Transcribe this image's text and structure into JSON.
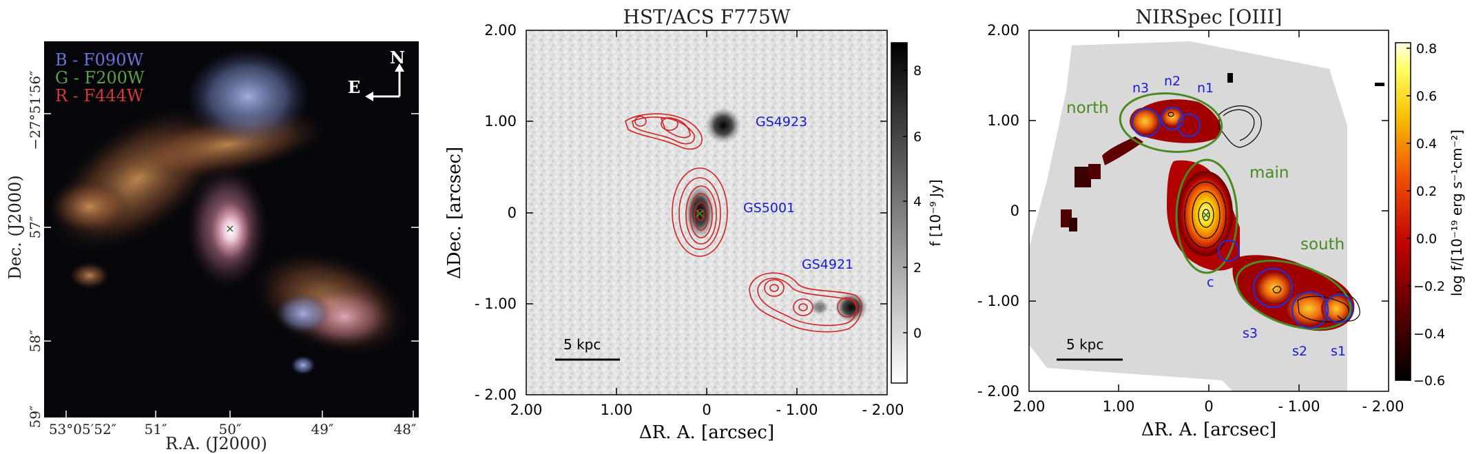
{
  "panel_left": {
    "legend": [
      {
        "text": "B - F090W",
        "color": "#6c74d8"
      },
      {
        "text": "G - F200W",
        "color": "#5ca04a"
      },
      {
        "text": "R - F444W",
        "color": "#d23a3a"
      }
    ],
    "compass": {
      "north": "N",
      "east": "E"
    },
    "y_ticks": [
      "−27°51′56″",
      "57″",
      "58″",
      "59″"
    ],
    "x_ticks": [
      "53°05′52″",
      "51″",
      "50″",
      "49″",
      "48″"
    ],
    "xlabel": "R.A. (J2000)",
    "ylabel": "Dec. (J2000)"
  },
  "panel_mid": {
    "title": "HST/ACS F775W",
    "x_ticks": [
      "2.00",
      "1.00",
      "0",
      "- 1.00",
      "- 2.00"
    ],
    "y_ticks": [
      "2.00",
      "1.00",
      "0",
      "- 1.00",
      "- 2.00"
    ],
    "xlabel": "ΔR. A.  [arcsec]",
    "ylabel": "ΔDec.  [arcsec]",
    "labels": {
      "gs4923": "GS4923",
      "gs5001": "GS5001",
      "gs4921": "GS4921"
    },
    "scalebar": "5 kpc",
    "colorbar": {
      "ticks": [
        "8",
        "6",
        "4",
        "2",
        "0"
      ],
      "label": "f [10⁻⁹ Jy]"
    }
  },
  "panel_right": {
    "title": "NIRSpec [OIII]",
    "x_ticks": [
      "2.00",
      "1.00",
      "0",
      "- 1.00",
      "- 2.00"
    ],
    "y_ticks": [
      "2.00",
      "1.00",
      "0",
      "- 1.00",
      "- 2.00"
    ],
    "xlabel": "ΔR. A.  [arcsec]",
    "regions": {
      "north": "north",
      "main": "main",
      "south": "south"
    },
    "apertures": {
      "n1": "n1",
      "n2": "n2",
      "n3": "n3",
      "c": "c",
      "s1": "s1",
      "s2": "s2",
      "s3": "s3"
    },
    "scalebar": "5 kpc",
    "colorbar": {
      "ticks": [
        "0.8",
        "0.6",
        "0.4",
        "0.2",
        "0.0",
        "−0.2",
        "−0.4",
        "−0.6"
      ],
      "label": "log f/[10⁻¹⁹ erg s⁻¹cm⁻²]"
    }
  },
  "colors": {
    "galaxy_blue": "#8a95c8",
    "galaxy_orange": "#c78a4a",
    "contour_red": "#d02020",
    "region_green": "#4a8a20",
    "aperture_blue": "#2030d8",
    "label_blue": "#1a1ad0",
    "map_bg": "#d9d9d9"
  }
}
